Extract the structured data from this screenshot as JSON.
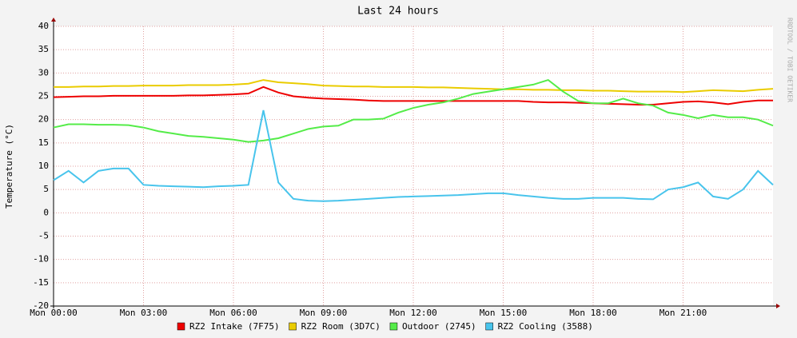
{
  "chart_data": {
    "type": "line",
    "title": "Last 24 hours",
    "y_label": "Temperature (°C)",
    "watermark": "RRDTOOL / TOBI OETIKER",
    "x": [
      0,
      0.5,
      1,
      1.5,
      2,
      2.5,
      3,
      3.5,
      4,
      4.5,
      5,
      5.5,
      6,
      6.5,
      7,
      7.5,
      8,
      8.5,
      9,
      9.5,
      10,
      10.5,
      11,
      11.5,
      12,
      12.5,
      13,
      13.5,
      14,
      14.5,
      15,
      15.5,
      16,
      16.5,
      17,
      17.5,
      18,
      18.5,
      19,
      19.5,
      20,
      20.5,
      21,
      21.5,
      22,
      22.5,
      23,
      23.5,
      24
    ],
    "xlim": [
      0,
      24
    ],
    "xticks": [
      {
        "value": 0,
        "label": "Mon 00:00"
      },
      {
        "value": 3,
        "label": "Mon 03:00"
      },
      {
        "value": 6,
        "label": "Mon 06:00"
      },
      {
        "value": 9,
        "label": "Mon 09:00"
      },
      {
        "value": 12,
        "label": "Mon 12:00"
      },
      {
        "value": 15,
        "label": "Mon 15:00"
      },
      {
        "value": 18,
        "label": "Mon 18:00"
      },
      {
        "value": 21,
        "label": "Mon 21:00"
      }
    ],
    "ylim": [
      -20,
      40
    ],
    "yticks": [
      -20,
      -15,
      -10,
      -5,
      0,
      5,
      10,
      15,
      20,
      25,
      30,
      35,
      40
    ],
    "grid": true,
    "series": [
      {
        "name": "RZ2 Intake (7F75)",
        "color": "#ee0000",
        "values": [
          24.8,
          24.9,
          25.0,
          25.0,
          25.1,
          25.1,
          25.1,
          25.1,
          25.1,
          25.2,
          25.2,
          25.3,
          25.4,
          25.6,
          27,
          25.8,
          25.0,
          24.7,
          24.5,
          24.4,
          24.3,
          24.1,
          24.0,
          24.0,
          24.0,
          24.0,
          24.0,
          24.0,
          24.0,
          24.0,
          24.0,
          24.0,
          23.8,
          23.7,
          23.7,
          23.6,
          23.5,
          23.4,
          23.3,
          23.2,
          23.2,
          23.5,
          23.8,
          23.9,
          23.7,
          23.3,
          23.8,
          24.1,
          24.1
        ]
      },
      {
        "name": "RZ2 Room (3D7C)",
        "color": "#eacc00",
        "values": [
          27.0,
          27.0,
          27.1,
          27.1,
          27.2,
          27.2,
          27.3,
          27.3,
          27.3,
          27.4,
          27.4,
          27.4,
          27.5,
          27.7,
          28.5,
          28.0,
          27.8,
          27.6,
          27.3,
          27.2,
          27.1,
          27.1,
          27.0,
          27.0,
          27.0,
          26.9,
          26.9,
          26.8,
          26.7,
          26.6,
          26.5,
          26.5,
          26.4,
          26.4,
          26.3,
          26.3,
          26.2,
          26.2,
          26.1,
          26.0,
          26.0,
          26.0,
          25.9,
          26.1,
          26.3,
          26.2,
          26.1,
          26.4,
          26.6
        ]
      },
      {
        "name": "Outdoor (2745)",
        "color": "#54ec48",
        "values": [
          18.3,
          19.0,
          19.0,
          18.9,
          18.9,
          18.8,
          18.3,
          17.5,
          17.0,
          16.5,
          16.3,
          16.0,
          15.7,
          15.2,
          15.5,
          16.0,
          17.0,
          18.0,
          18.5,
          18.7,
          20.0,
          20.0,
          20.2,
          21.5,
          22.5,
          23.2,
          23.7,
          24.5,
          25.5,
          26.0,
          26.5,
          27.0,
          27.5,
          28.5,
          26.0,
          24.0,
          23.5,
          23.5,
          24.5,
          23.5,
          23.0,
          21.5,
          21.0,
          20.3,
          21.0,
          20.5,
          20.5,
          20.0,
          18.7
        ]
      },
      {
        "name": "RZ2 Cooling (3588)",
        "color": "#48c4ec",
        "values": [
          7.0,
          9.0,
          6.5,
          9.0,
          9.5,
          9.5,
          6.0,
          5.8,
          5.7,
          5.6,
          5.5,
          5.7,
          5.8,
          6.0,
          22,
          6.5,
          3.0,
          2.6,
          2.5,
          2.6,
          2.8,
          3.0,
          3.2,
          3.4,
          3.5,
          3.6,
          3.7,
          3.8,
          4.0,
          4.2,
          4.2,
          3.8,
          3.5,
          3.2,
          3.0,
          3.0,
          3.2,
          3.2,
          3.2,
          3.0,
          2.9,
          5.0,
          5.5,
          6.5,
          3.5,
          3.0,
          5.0,
          9.0,
          6.0
        ]
      }
    ]
  }
}
